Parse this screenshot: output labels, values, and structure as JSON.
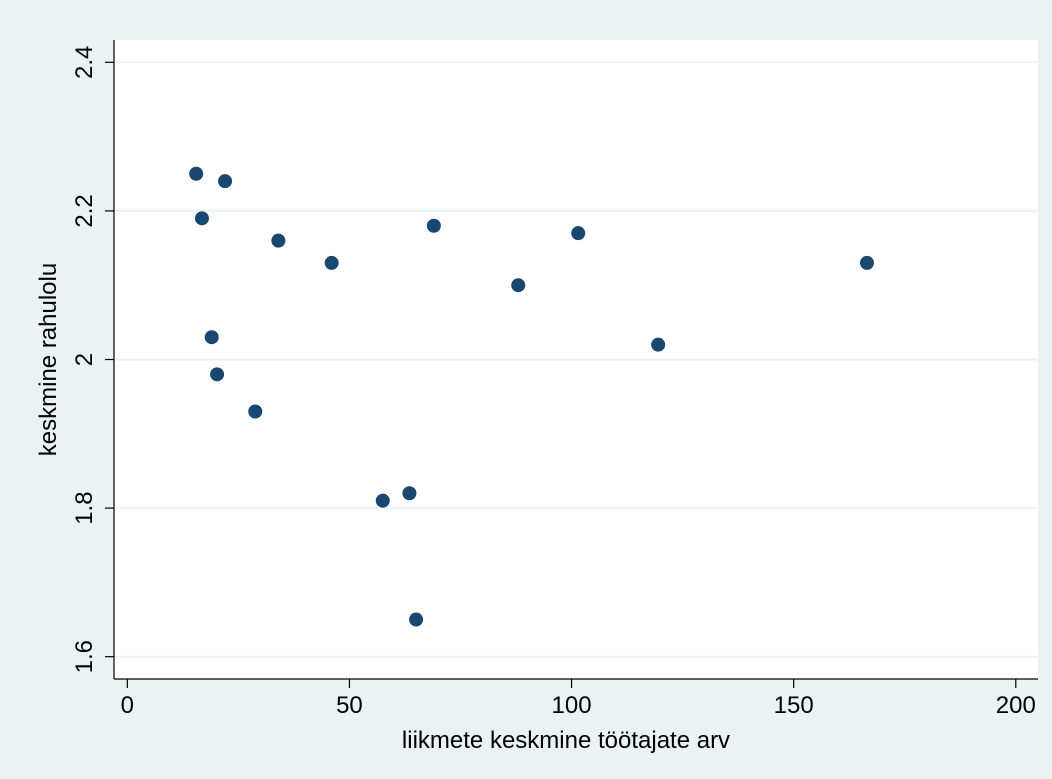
{
  "colors": {
    "outer_background": "#eaf2f3",
    "plot_background": "#ffffff",
    "gridline": "#eaf2f3",
    "axis_line": "#000000",
    "marker": "#1a476f"
  },
  "chart_data": {
    "type": "scatter",
    "xlabel": "liikmete keskmine töötajate arv",
    "ylabel": "keskmine rahulolu",
    "xlim": [
      -3,
      205
    ],
    "ylim": [
      1.57,
      2.43
    ],
    "x_ticks": [
      0,
      50,
      100,
      150,
      200
    ],
    "x_tick_labels": [
      "0",
      "50",
      "100",
      "150",
      "200"
    ],
    "y_ticks": [
      1.6,
      1.8,
      2.0,
      2.2,
      2.4
    ],
    "y_tick_labels": [
      "1.6",
      "1.8",
      "2",
      "2.2",
      "2.4"
    ],
    "grid": "horizontal",
    "points": [
      {
        "x": 15.5,
        "y": 2.25
      },
      {
        "x": 16.8,
        "y": 2.19
      },
      {
        "x": 22.0,
        "y": 2.24
      },
      {
        "x": 19.0,
        "y": 2.03
      },
      {
        "x": 20.2,
        "y": 1.98
      },
      {
        "x": 28.8,
        "y": 1.93
      },
      {
        "x": 34.0,
        "y": 2.16
      },
      {
        "x": 46.0,
        "y": 2.13
      },
      {
        "x": 57.5,
        "y": 1.81
      },
      {
        "x": 63.5,
        "y": 1.82
      },
      {
        "x": 65.0,
        "y": 1.65
      },
      {
        "x": 69.0,
        "y": 2.18
      },
      {
        "x": 88.0,
        "y": 2.1
      },
      {
        "x": 101.5,
        "y": 2.17
      },
      {
        "x": 119.5,
        "y": 2.02
      },
      {
        "x": 166.5,
        "y": 2.13
      }
    ]
  }
}
